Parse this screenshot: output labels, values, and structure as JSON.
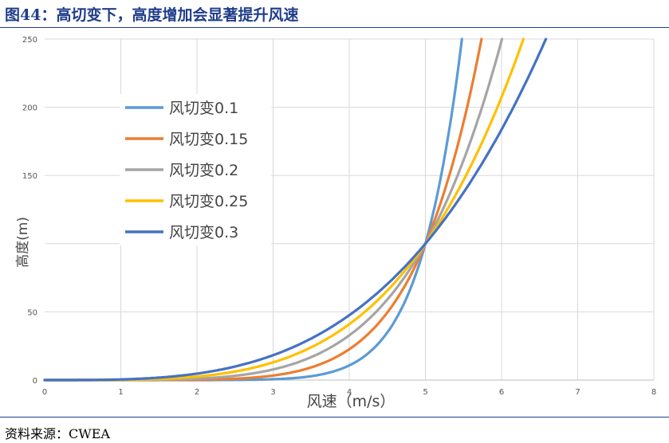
{
  "figure": {
    "title": "图44：高切变下，高度增加会显著提升风速",
    "source": "资料来源：CWEA"
  },
  "chart_data": {
    "type": "line",
    "xlabel": "风速（m/s）",
    "ylabel": "高度(m)",
    "xlim": [
      0,
      8
    ],
    "ylim": [
      0,
      250
    ],
    "x_ticks": [
      0,
      1,
      2,
      3,
      4,
      5,
      6,
      7,
      8
    ],
    "y_ticks": [
      0,
      50,
      150,
      200,
      250
    ],
    "grid": true,
    "legend_position": "upper-left",
    "reference": {
      "speed": 5,
      "height": 100
    },
    "series": [
      {
        "name": "风切变0.1",
        "shear": 0.1,
        "color": "#5b9bd5"
      },
      {
        "name": "风切变0.15",
        "shear": 0.15,
        "color": "#ed7d31"
      },
      {
        "name": "风切变0.2",
        "shear": 0.2,
        "color": "#a5a5a5"
      },
      {
        "name": "风切变0.25",
        "shear": 0.25,
        "color": "#ffc000"
      },
      {
        "name": "风切变0.3",
        "shear": 0.3,
        "color": "#4472c4"
      }
    ]
  }
}
